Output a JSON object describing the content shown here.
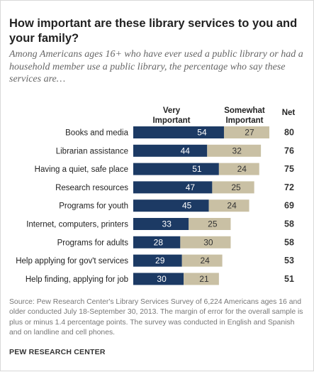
{
  "title": "How important are these library services to you and your family?",
  "subtitle": "Among Americans ages 16+ who have ever used a public library or had a household member use a public library, the percentage who say these services are…",
  "headers": {
    "very": "Very Important",
    "somewhat": "Somewhat Important",
    "net": "Net"
  },
  "colors": {
    "very": "#1c3a64",
    "somewhat": "#c9c0a4",
    "very_text": "#ffffff",
    "somewhat_text": "#333333"
  },
  "chart_data": {
    "type": "bar",
    "orientation": "horizontal",
    "stacked": true,
    "categories": [
      "Books and media",
      "Librarian assistance",
      "Having a quiet, safe place",
      "Research resources",
      "Programs for youth",
      "Internet, computers, printers",
      "Programs for adults",
      "Help applying for gov't services",
      "Help finding, applying for job"
    ],
    "series": [
      {
        "name": "Very Important",
        "values": [
          54,
          44,
          51,
          47,
          45,
          33,
          28,
          29,
          30
        ]
      },
      {
        "name": "Somewhat Important",
        "values": [
          27,
          32,
          24,
          25,
          24,
          25,
          30,
          24,
          21
        ]
      }
    ],
    "net": [
      80,
      76,
      75,
      72,
      69,
      58,
      58,
      53,
      51
    ],
    "xlim": [
      0,
      100
    ],
    "grid": false,
    "legend": "column headers above bars"
  },
  "source": "Source: Pew Research Center's Library Services Survey of 6,224 Americans ages 16 and older conducted July 18-September 30, 2013. The margin of error for the overall sample is plus or minus 1.4 percentage points. The survey was conducted in English and Spanish and on landline and cell phones.",
  "brand": "PEW RESEARCH CENTER"
}
